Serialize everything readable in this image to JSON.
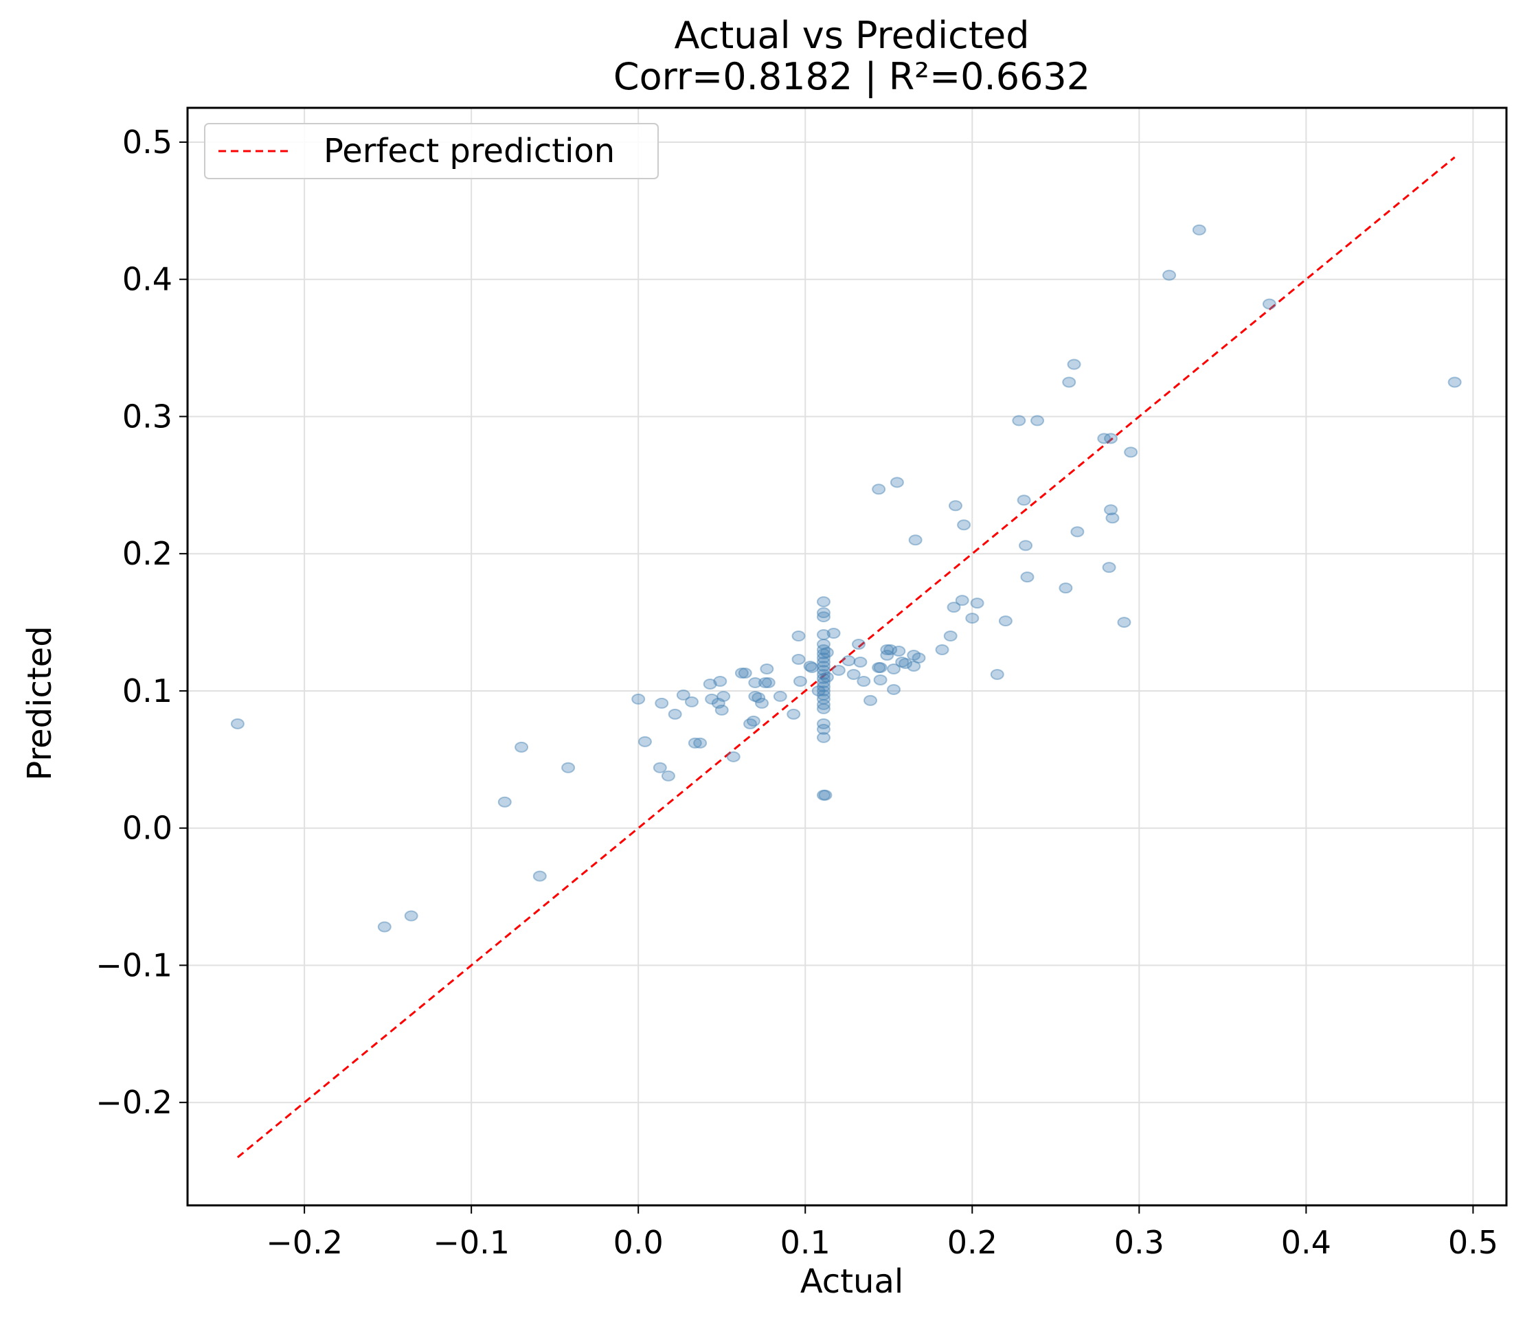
{
  "chart_data": {
    "type": "scatter",
    "title": "Actual vs Predicted",
    "subtitle": "Corr=0.8182 | R²=0.6632",
    "xlabel": "Actual",
    "ylabel": "Predicted",
    "xlim": [
      -0.27,
      0.52
    ],
    "ylim": [
      -0.275,
      0.525
    ],
    "xticks": [
      -0.2,
      -0.1,
      0.0,
      0.1,
      0.2,
      0.3,
      0.4,
      0.5
    ],
    "xtick_labels": [
      "−0.2",
      "−0.1",
      "0.0",
      "0.1",
      "0.2",
      "0.3",
      "0.4",
      "0.5"
    ],
    "yticks": [
      -0.2,
      -0.1,
      0.0,
      0.1,
      0.2,
      0.3,
      0.4,
      0.5
    ],
    "ytick_labels": [
      "−0.2",
      "−0.1",
      "0.0",
      "0.1",
      "0.2",
      "0.3",
      "0.4",
      "0.5"
    ],
    "grid": true,
    "legend_position": "top-left",
    "colors": {
      "points": "#4682b4",
      "line": "#ff0000",
      "grid": "#e0e0e0",
      "axes": "#000000"
    },
    "series": [
      {
        "kind": "scatter",
        "points": [
          [
            -0.24,
            0.076
          ],
          [
            -0.152,
            -0.072
          ],
          [
            -0.136,
            -0.064
          ],
          [
            -0.08,
            0.019
          ],
          [
            -0.07,
            0.059
          ],
          [
            -0.059,
            -0.035
          ],
          [
            -0.042,
            0.044
          ],
          [
            0.0,
            0.094
          ],
          [
            0.004,
            0.063
          ],
          [
            0.013,
            0.044
          ],
          [
            0.014,
            0.091
          ],
          [
            0.018,
            0.038
          ],
          [
            0.022,
            0.083
          ],
          [
            0.027,
            0.097
          ],
          [
            0.032,
            0.092
          ],
          [
            0.034,
            0.062
          ],
          [
            0.037,
            0.062
          ],
          [
            0.043,
            0.105
          ],
          [
            0.044,
            0.094
          ],
          [
            0.048,
            0.091
          ],
          [
            0.049,
            0.107
          ],
          [
            0.05,
            0.086
          ],
          [
            0.051,
            0.096
          ],
          [
            0.057,
            0.052
          ],
          [
            0.062,
            0.113
          ],
          [
            0.064,
            0.113
          ],
          [
            0.067,
            0.076
          ],
          [
            0.069,
            0.078
          ],
          [
            0.07,
            0.096
          ],
          [
            0.07,
            0.106
          ],
          [
            0.072,
            0.095
          ],
          [
            0.074,
            0.091
          ],
          [
            0.076,
            0.106
          ],
          [
            0.077,
            0.116
          ],
          [
            0.078,
            0.106
          ],
          [
            0.085,
            0.096
          ],
          [
            0.093,
            0.083
          ],
          [
            0.096,
            0.14
          ],
          [
            0.096,
            0.123
          ],
          [
            0.097,
            0.107
          ],
          [
            0.103,
            0.118
          ],
          [
            0.104,
            0.117
          ],
          [
            0.108,
            0.1
          ],
          [
            0.111,
            0.165
          ],
          [
            0.111,
            0.157
          ],
          [
            0.111,
            0.154
          ],
          [
            0.111,
            0.141
          ],
          [
            0.111,
            0.134
          ],
          [
            0.111,
            0.13
          ],
          [
            0.111,
            0.127
          ],
          [
            0.111,
            0.124
          ],
          [
            0.111,
            0.121
          ],
          [
            0.111,
            0.118
          ],
          [
            0.111,
            0.115
          ],
          [
            0.111,
            0.112
          ],
          [
            0.111,
            0.109
          ],
          [
            0.111,
            0.106
          ],
          [
            0.111,
            0.103
          ],
          [
            0.111,
            0.1
          ],
          [
            0.111,
            0.097
          ],
          [
            0.111,
            0.094
          ],
          [
            0.111,
            0.09
          ],
          [
            0.111,
            0.087
          ],
          [
            0.111,
            0.076
          ],
          [
            0.111,
            0.072
          ],
          [
            0.111,
            0.066
          ],
          [
            0.111,
            0.024
          ],
          [
            0.112,
            0.024
          ],
          [
            0.113,
            0.128
          ],
          [
            0.113,
            0.11
          ],
          [
            0.117,
            0.142
          ],
          [
            0.12,
            0.115
          ],
          [
            0.126,
            0.122
          ],
          [
            0.129,
            0.112
          ],
          [
            0.132,
            0.134
          ],
          [
            0.133,
            0.121
          ],
          [
            0.135,
            0.107
          ],
          [
            0.139,
            0.093
          ],
          [
            0.144,
            0.117
          ],
          [
            0.145,
            0.117
          ],
          [
            0.144,
            0.247
          ],
          [
            0.145,
            0.108
          ],
          [
            0.149,
            0.13
          ],
          [
            0.149,
            0.126
          ],
          [
            0.151,
            0.13
          ],
          [
            0.153,
            0.101
          ],
          [
            0.153,
            0.116
          ],
          [
            0.155,
            0.252
          ],
          [
            0.156,
            0.129
          ],
          [
            0.158,
            0.121
          ],
          [
            0.16,
            0.12
          ],
          [
            0.165,
            0.126
          ],
          [
            0.165,
            0.118
          ],
          [
            0.166,
            0.21
          ],
          [
            0.168,
            0.124
          ],
          [
            0.182,
            0.13
          ],
          [
            0.187,
            0.14
          ],
          [
            0.189,
            0.161
          ],
          [
            0.19,
            0.235
          ],
          [
            0.194,
            0.166
          ],
          [
            0.195,
            0.221
          ],
          [
            0.2,
            0.153
          ],
          [
            0.203,
            0.164
          ],
          [
            0.215,
            0.112
          ],
          [
            0.22,
            0.151
          ],
          [
            0.228,
            0.297
          ],
          [
            0.231,
            0.239
          ],
          [
            0.232,
            0.206
          ],
          [
            0.233,
            0.183
          ],
          [
            0.239,
            0.297
          ],
          [
            0.256,
            0.175
          ],
          [
            0.258,
            0.325
          ],
          [
            0.261,
            0.338
          ],
          [
            0.263,
            0.216
          ],
          [
            0.279,
            0.284
          ],
          [
            0.282,
            0.19
          ],
          [
            0.283,
            0.284
          ],
          [
            0.283,
            0.232
          ],
          [
            0.284,
            0.226
          ],
          [
            0.291,
            0.15
          ],
          [
            0.295,
            0.274
          ],
          [
            0.318,
            0.403
          ],
          [
            0.336,
            0.436
          ],
          [
            0.378,
            0.382
          ],
          [
            0.489,
            0.325
          ]
        ]
      },
      {
        "kind": "line",
        "name": "Perfect prediction",
        "x": [
          -0.24,
          0.489
        ],
        "y": [
          -0.24,
          0.489
        ]
      }
    ]
  }
}
